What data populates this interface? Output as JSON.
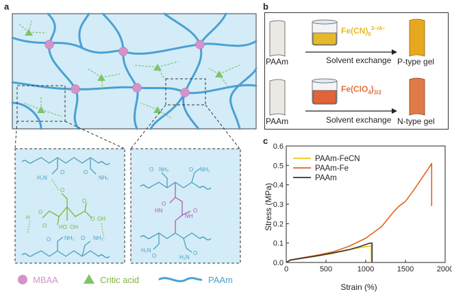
{
  "panel_a": {
    "letter": "a",
    "legend": {
      "mbaa": "MBAA",
      "citric": "Critic acid",
      "paam": "PAAm"
    },
    "colors": {
      "network_bg": "#d3ecf7",
      "chain": "#4a9fd4",
      "crosslink": "#d493c9",
      "citric": "#7ec46b",
      "chem_blue": "#4a9fc0",
      "chem_green": "#7cb342",
      "chem_purple": "#b05ab5"
    }
  },
  "panel_b": {
    "letter": "b",
    "row1": {
      "start": "PAAm",
      "reagent": "Fe(CN)",
      "reagent_sub": "6",
      "reagent_sup": "3−/4−",
      "process": "Solvent exchange",
      "result": "P-type gel"
    },
    "row2": {
      "start": "PAAm",
      "reagent": "Fe(ClO",
      "reagent_sub1": "4",
      "reagent_close": ")",
      "reagent_sub2": "3/2",
      "process": "Solvent exchange",
      "result": "N-type gel"
    },
    "colors": {
      "fecn": "#e6b92a",
      "fe": "#e2733a"
    }
  },
  "panel_c": {
    "letter": "c",
    "chart_data": {
      "type": "line",
      "xlabel": "Strain (%)",
      "ylabel": "Stress (MPa)",
      "xlim": [
        0,
        2000
      ],
      "ylim": [
        0,
        0.6
      ],
      "xticks": [
        "0",
        "500",
        "1000",
        "1500",
        "2000"
      ],
      "yticks": [
        "0.0",
        "0.1",
        "0.2",
        "0.3",
        "0.4",
        "0.5",
        "0.6"
      ],
      "xtick_values": [
        0,
        500,
        1000,
        1500,
        2000
      ],
      "ytick_values": [
        0,
        0.1,
        0.2,
        0.3,
        0.4,
        0.5,
        0.6
      ],
      "legend_position": "top-left",
      "series": [
        {
          "name": "PAAm-FeCN",
          "color": "#f0c419",
          "x": [
            0,
            50,
            200,
            400,
            600,
            800,
            950,
            1060,
            1070,
            1070
          ],
          "y": [
            0,
            0.013,
            0.022,
            0.034,
            0.048,
            0.066,
            0.078,
            0.085,
            0.088,
            0
          ]
        },
        {
          "name": "PAAm-Fe",
          "color": "#e2621b",
          "x": [
            0,
            50,
            200,
            400,
            600,
            800,
            1000,
            1200,
            1350,
            1420,
            1500,
            1600,
            1700,
            1800,
            1830,
            1830
          ],
          "y": [
            0,
            0.013,
            0.024,
            0.038,
            0.056,
            0.085,
            0.125,
            0.185,
            0.26,
            0.29,
            0.315,
            0.37,
            0.43,
            0.49,
            0.51,
            0.29
          ]
        },
        {
          "name": "PAAm",
          "color": "#333333",
          "x": [
            0,
            50,
            200,
            400,
            600,
            800,
            950,
            1040,
            1080,
            1080
          ],
          "y": [
            0,
            0.012,
            0.022,
            0.035,
            0.05,
            0.067,
            0.085,
            0.098,
            0.1,
            0
          ]
        }
      ]
    }
  }
}
